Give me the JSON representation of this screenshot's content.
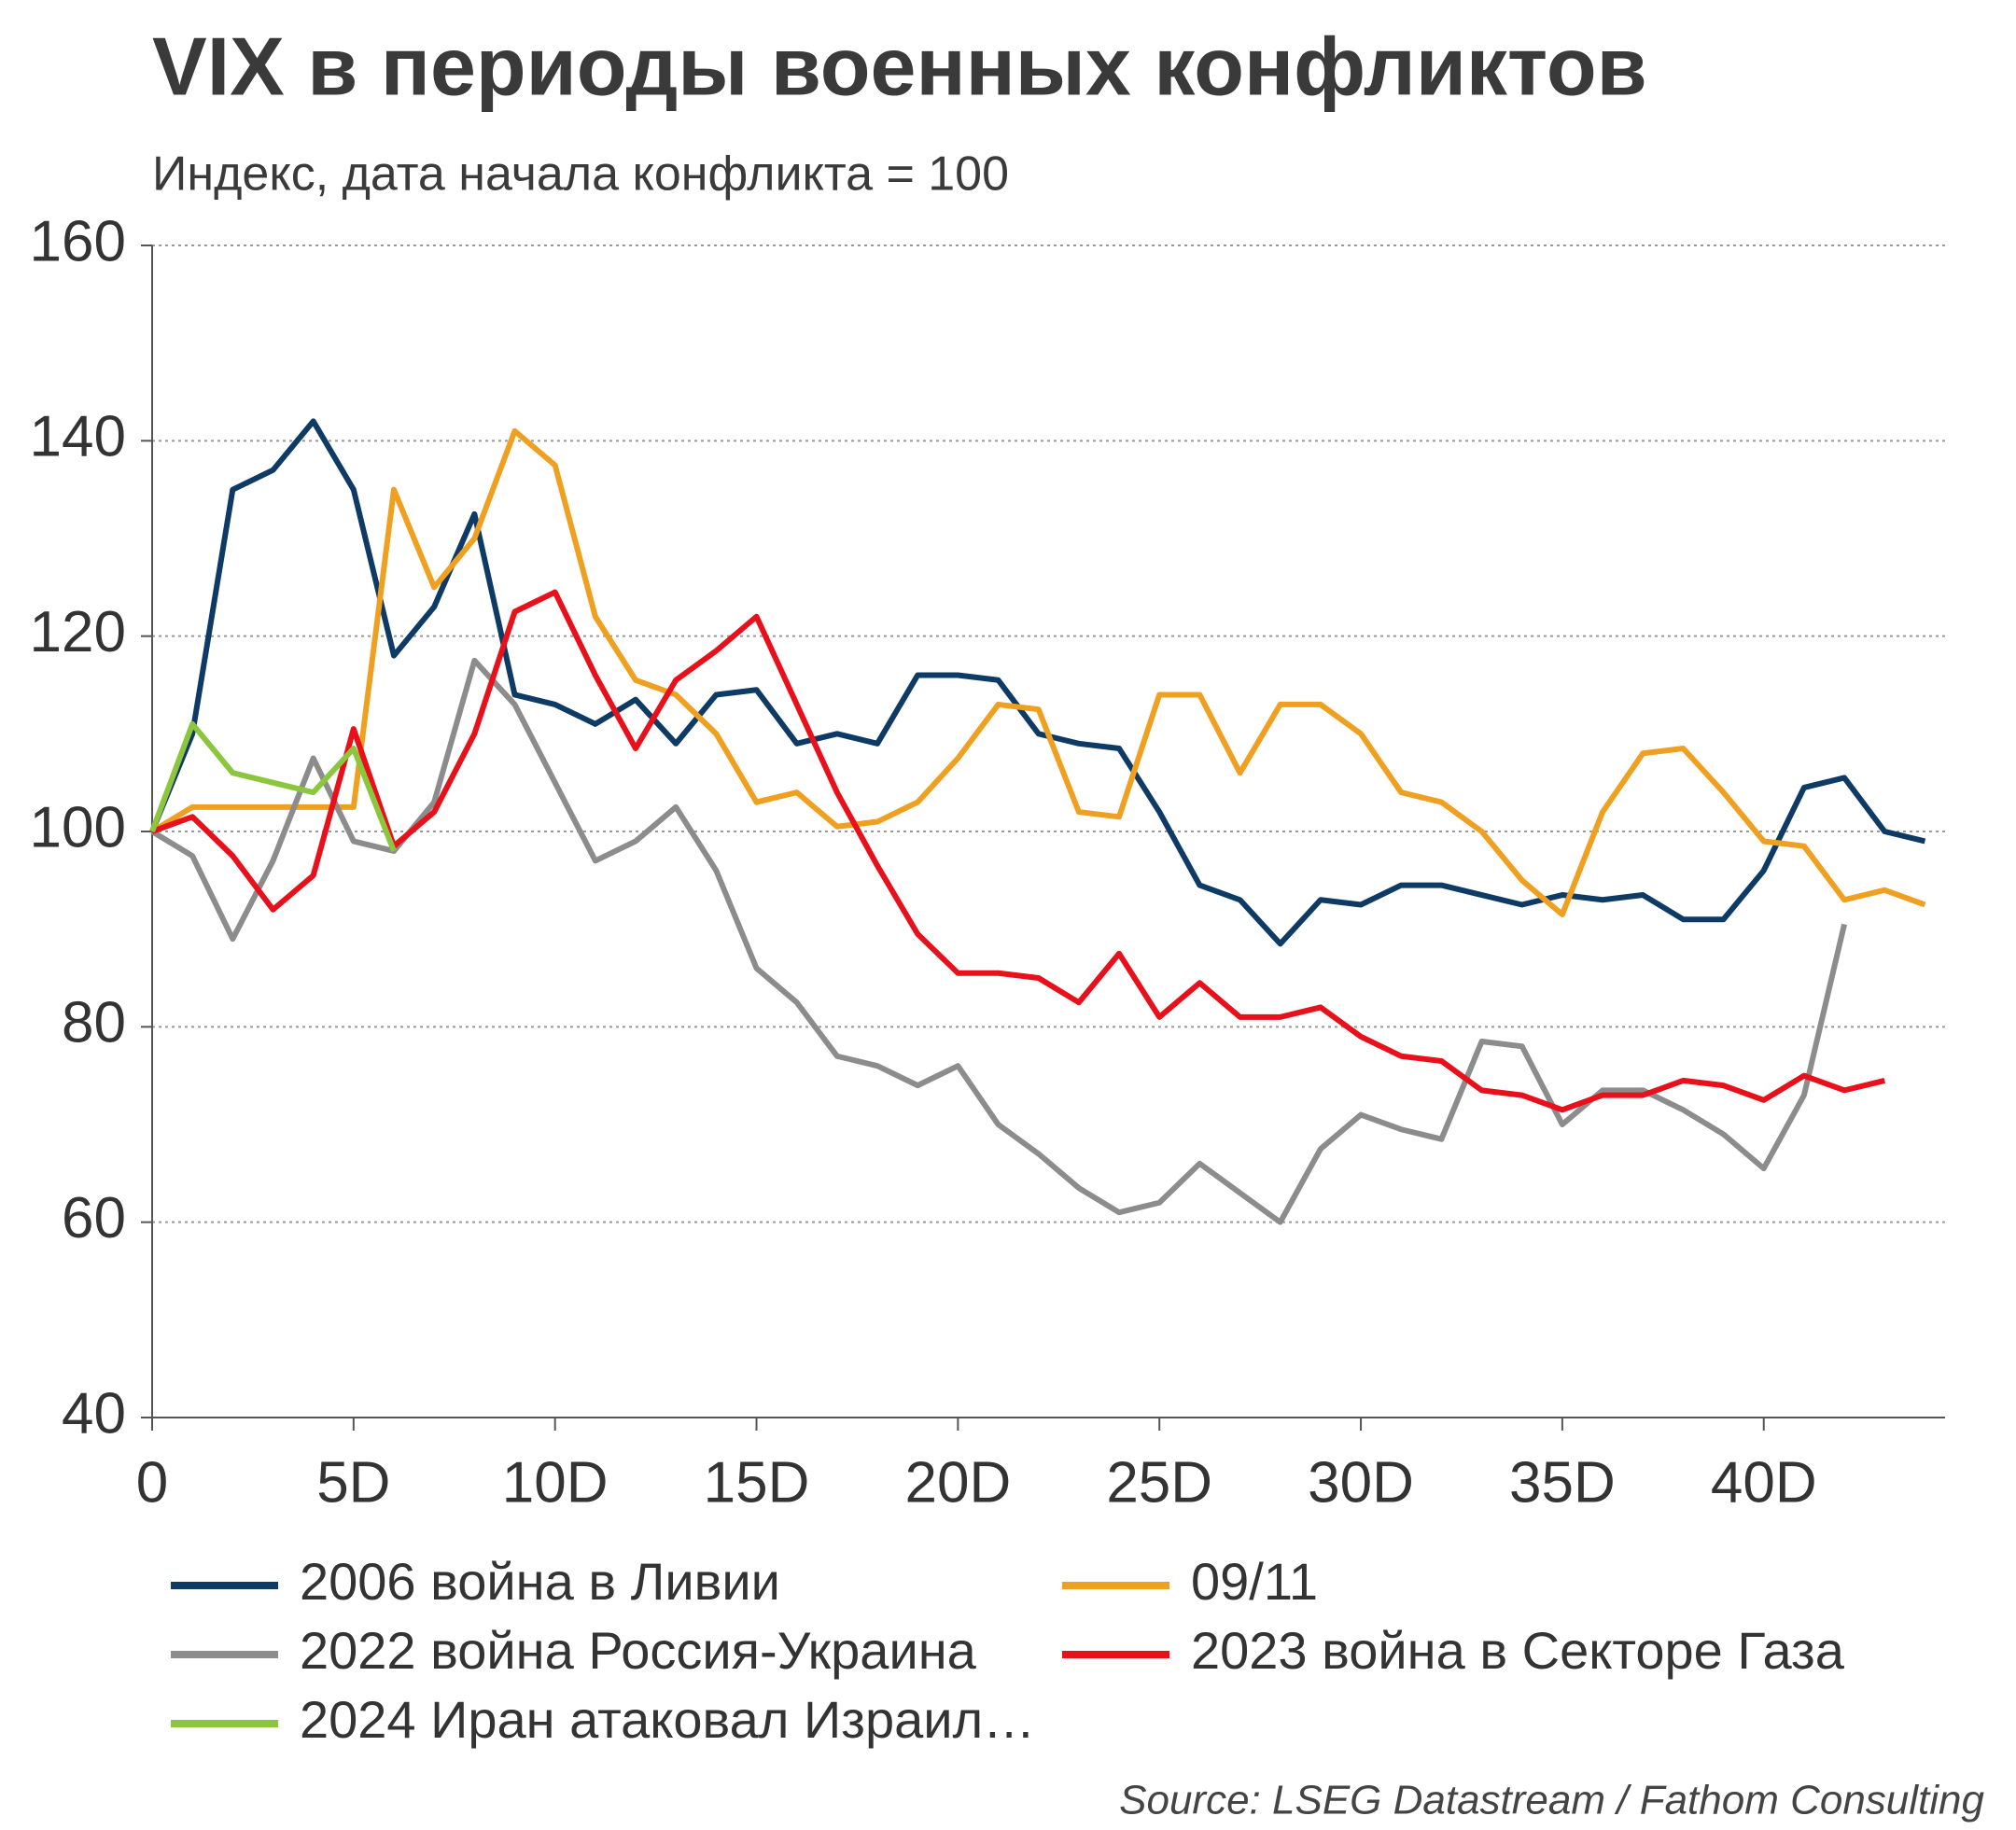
{
  "chart_data": {
    "type": "line",
    "title": "VIX в периоды военных конфликтов",
    "subtitle": "Индекс, дата начала конфликта = 100",
    "source": "Source: LSEG Datastream / Fathom Consulting",
    "x": [
      0,
      1,
      2,
      3,
      4,
      5,
      6,
      7,
      8,
      9,
      10,
      11,
      12,
      13,
      14,
      15,
      16,
      17,
      18,
      19,
      20,
      21,
      22,
      23,
      24,
      25,
      26,
      27,
      28,
      29,
      30,
      31,
      32,
      33,
      34,
      35,
      36,
      37,
      38,
      39,
      40,
      41,
      42,
      43,
      44
    ],
    "xlim": [
      0,
      44.5
    ],
    "xticks": [
      0,
      {
        "value": 5,
        "label": "5D"
      },
      {
        "value": 10,
        "label": "10D"
      },
      {
        "value": 15,
        "label": "15D"
      },
      {
        "value": 20,
        "label": "20D"
      },
      {
        "value": 25,
        "label": "25D"
      },
      {
        "value": 30,
        "label": "30D"
      },
      {
        "value": 35,
        "label": "35D"
      },
      {
        "value": 40,
        "label": "40D"
      }
    ],
    "ylim": [
      40,
      160
    ],
    "yticks": [
      40,
      60,
      80,
      100,
      120,
      140,
      160
    ],
    "grid": true,
    "legend": "bottom",
    "series": [
      {
        "name": "2006 война в Ливии",
        "color": "#0e3a66",
        "values": [
          100,
          110,
          135,
          137,
          142,
          135,
          118,
          123,
          132.5,
          114,
          113,
          111,
          113.5,
          109,
          114,
          114.5,
          109,
          110,
          109,
          116,
          116,
          115.5,
          110,
          109,
          108.5,
          102,
          94.5,
          93,
          88.5,
          93,
          92.5,
          94.5,
          94.5,
          93.5,
          92.5,
          93.5,
          93,
          93.5,
          91,
          91,
          96,
          104.5,
          105.5,
          100,
          99
        ]
      },
      {
        "name": "09/11",
        "color": "#f0a020",
        "values": [
          100,
          102.5,
          102.5,
          102.5,
          102.5,
          102.5,
          135,
          125,
          130,
          141,
          137.5,
          122,
          115.5,
          114,
          110,
          103,
          104,
          100.5,
          101,
          103,
          107.5,
          113,
          112.5,
          102,
          101.5,
          114,
          114,
          106,
          113,
          113,
          110,
          104,
          103,
          100,
          95,
          91.5,
          102,
          108,
          108.5,
          104,
          99,
          98.5,
          93,
          94,
          92.5
        ]
      },
      {
        "name": "2022 война Россия-Украина",
        "color": "#8c8c8c",
        "values": [
          100,
          97.5,
          89,
          97,
          107.5,
          99,
          98,
          103,
          117.5,
          113,
          105,
          97,
          99,
          102.5,
          96,
          86,
          82.5,
          77,
          76,
          74,
          76,
          70,
          67,
          63.5,
          61,
          62,
          66,
          63,
          60,
          67.5,
          71,
          69.5,
          68.5,
          78.5,
          78,
          70,
          73.5,
          73.5,
          71.5,
          69,
          65.5,
          73,
          90.5,
          null,
          null
        ]
      },
      {
        "name": "2023 война в Секторе Газа",
        "color": "#e8101a",
        "values": [
          100,
          101.5,
          97.5,
          92,
          95.5,
          110.5,
          98.5,
          102,
          110,
          122.5,
          124.5,
          116,
          108.5,
          115.5,
          118.5,
          122,
          113,
          104,
          96.5,
          89.5,
          85.5,
          85.5,
          85,
          82.5,
          87.5,
          81,
          84.5,
          81,
          81,
          82,
          79,
          77,
          76.5,
          73.5,
          73,
          71.5,
          73,
          73,
          74.5,
          74,
          72.5,
          75,
          73.5,
          74.5,
          null
        ]
      },
      {
        "name": "2024 Иран атаковал Израил…",
        "color": "#8cc63f",
        "values": [
          100,
          111,
          106,
          105,
          104,
          108.5,
          98,
          null,
          null,
          null,
          null,
          null,
          null,
          null,
          null,
          null,
          null,
          null,
          null,
          null,
          null,
          null,
          null,
          null,
          null,
          null,
          null,
          null,
          null,
          null,
          null,
          null,
          null,
          null,
          null,
          null,
          null,
          null,
          null,
          null,
          null,
          null,
          null,
          null,
          null
        ]
      }
    ]
  }
}
